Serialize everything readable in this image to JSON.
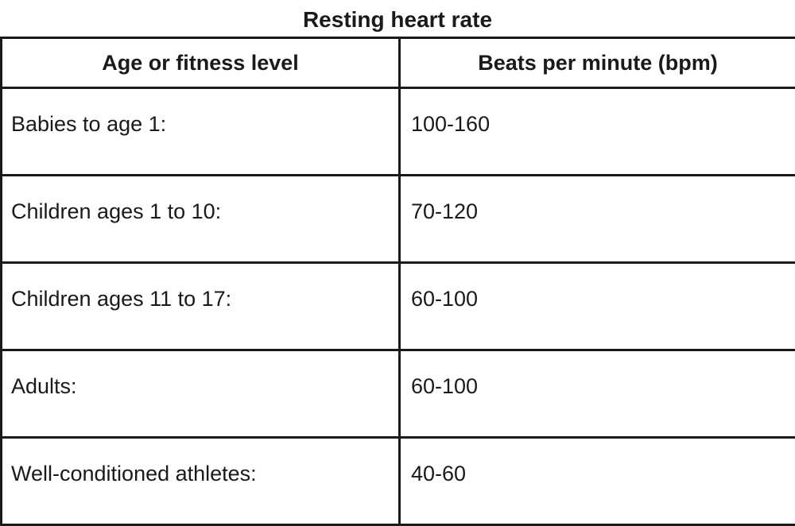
{
  "title": "Resting heart rate",
  "table": {
    "headers": [
      "Age or fitness level",
      "Beats per minute (bpm)"
    ],
    "rows": [
      [
        "Babies to age 1:",
        "100-160"
      ],
      [
        "Children ages 1 to 10:",
        "70-120"
      ],
      [
        "Children ages 11 to 17:",
        "60-100"
      ],
      [
        "Adults:",
        "60-100"
      ],
      [
        "Well-conditioned athletes:",
        "40-60"
      ]
    ]
  }
}
